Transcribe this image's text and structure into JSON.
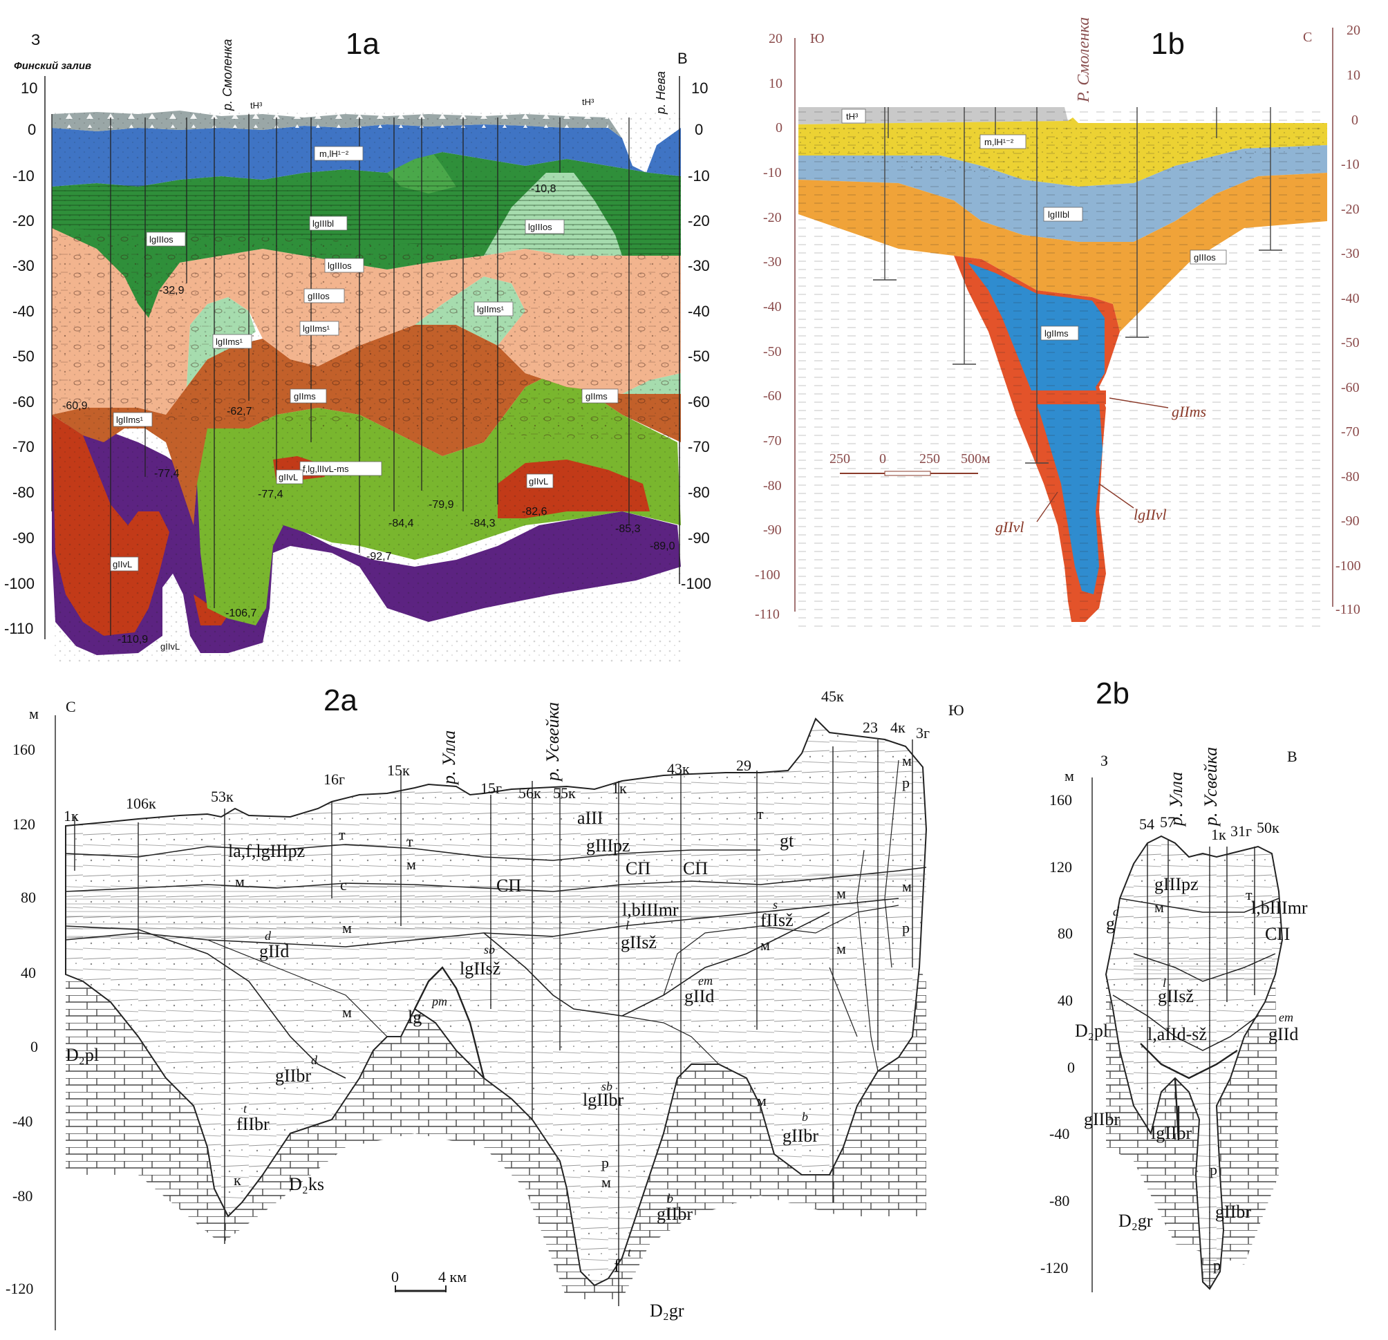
{
  "panels": {
    "p1a": {
      "title": "1а",
      "west_letter": "З",
      "east_letter": "В",
      "gulf": "Финский залив",
      "rivers": [
        "р. Смоленка",
        "р. Нева"
      ],
      "y_ticks": [
        "10",
        "0",
        "-10",
        "-20",
        "-30",
        "-40",
        "-50",
        "-60",
        "-70",
        "-80",
        "-90",
        "-100",
        "-110"
      ],
      "y_ticks_right": [
        "10",
        "0",
        "-10",
        "-20",
        "-30",
        "-40",
        "-50",
        "-60",
        "-70",
        "-80",
        "-90",
        "-100"
      ],
      "units": [
        "tH³",
        "tH³",
        "m,lH¹⁻²",
        "lgIIIbl",
        "lgIIIos",
        "lgIIIos",
        "lgIIIos",
        "gIIIos",
        "lgIIms¹",
        "lgIIms¹",
        "lgIIms¹",
        "lgIIms¹",
        "gIIms",
        "gIIms",
        "f,lg,lIIvL-ms",
        "gIIvL",
        "gIIvL",
        "gIIvL",
        "gIIvL"
      ],
      "depths": [
        "-10,8",
        "-32,9",
        "-60,9",
        "-62,7",
        "-77,4",
        "-77,4",
        "-79,9",
        "-82,6",
        "-84,3",
        "-84,4",
        "-85,3",
        "-89,0",
        "-92,7",
        "-106,7",
        "-110,9"
      ]
    },
    "p1b": {
      "title": "1b",
      "south_letter": "Ю",
      "north_letter": "С",
      "river": "Р. Смоленка",
      "y_ticks": [
        "20",
        "10",
        "0",
        "-10",
        "-20",
        "-30",
        "-40",
        "-50",
        "-60",
        "-70",
        "-80",
        "-90",
        "-100",
        "-110"
      ],
      "units": [
        "tH³",
        "m,lH¹⁻²",
        "lgIIIbl",
        "gIIIos",
        "lgIIms"
      ],
      "callouts": [
        "gIIms",
        "gIIvl",
        "lgIIvl"
      ],
      "scale": [
        "250",
        "0",
        "250",
        "500м"
      ]
    },
    "p2a": {
      "title": "2a",
      "north_letter": "С",
      "south_letter": "Ю",
      "unit_m": "м",
      "rivers": [
        "р. Улла",
        "р. Усвейка"
      ],
      "y_ticks": [
        "160",
        "120",
        "80",
        "40",
        "0",
        "-40",
        "-80",
        "-120"
      ],
      "wells": [
        "1к",
        "106к",
        "53к",
        "16г",
        "15к",
        "15г",
        "56к",
        "55к",
        "1к",
        "43к",
        "29",
        "45к",
        "23",
        "4к",
        "3г"
      ],
      "units": [
        "la,f,lgIIIpz",
        "aIII",
        "gIIIpz",
        "СП",
        "СП",
        "СП",
        "l,bIIImr",
        "gt",
        "gIId",
        "lgIIsž",
        "gIIsž",
        "fIIsž",
        "gIId",
        "lg",
        "D₂pl",
        "gIIbr",
        "fIIbr",
        "D₂ks",
        "lgIIbr",
        "gIIbr",
        "gIIbr",
        "f",
        "D₂gr"
      ],
      "superscripts": [
        "d",
        "sb",
        "l",
        "s",
        "em",
        "pm",
        "d",
        "t",
        "sb",
        "b",
        "b",
        "t"
      ],
      "letters": [
        "т",
        "т",
        "м",
        "м",
        "с",
        "м",
        "м",
        "т",
        "м",
        "м",
        "р",
        "м",
        "м",
        "р",
        "м",
        "к",
        "р",
        "м",
        "м"
      ],
      "scale": [
        "0",
        "4 км"
      ]
    },
    "p2b": {
      "title": "2b",
      "west_letter": "З",
      "east_letter": "В",
      "unit_m": "м",
      "rivers": [
        "р. Улла",
        "р. Усвейка"
      ],
      "y_ticks": [
        "160",
        "120",
        "80",
        "40",
        "0",
        "-40",
        "-80",
        "-120"
      ],
      "wells": [
        "54",
        "57",
        "1к",
        "31г",
        "50к"
      ],
      "units": [
        "gIIIpz",
        "l,bIIImr",
        "СП",
        "g",
        "gIIsž",
        "D₂pl",
        "l,aIId-sž",
        "gIId",
        "gIIbr",
        "lgIIbr",
        "D₂gr",
        "gIIbr"
      ],
      "superscripts": [
        "d",
        "l",
        "em"
      ],
      "letters": [
        "м",
        "т",
        "р",
        "р"
      ]
    }
  },
  "colors": {
    "p1a_topsoil": "#9aa7a7",
    "p1a_marine": "#3f74c4",
    "p1a_baltic": "#2f8f3a",
    "p1a_os_light": "#a6dcae",
    "p1a_till_os": "#f2b48e",
    "p1a_ms": "#c2602a",
    "p1a_vl_fg": "#79b62e",
    "p1a_vl_till": "#c23a18",
    "p1a_bedrock": "#5c2381",
    "p1b_topsoil": "#c9c9c9",
    "p1b_marine": "#ecd233",
    "p1b_baltic": "#8fb4d4",
    "p1b_till": "#f0a339",
    "p1b_ms_lake": "#2f8ccf",
    "p1b_red": "#e3532a",
    "p1b_axis": "#8a5050"
  }
}
